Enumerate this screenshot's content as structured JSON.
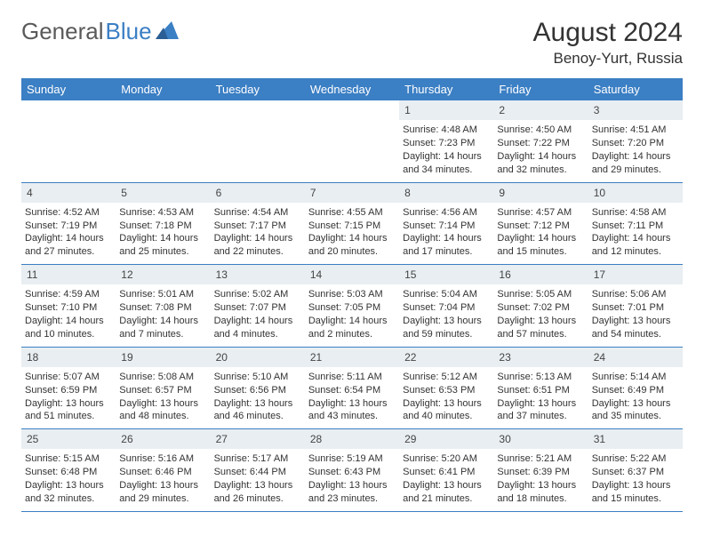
{
  "logo": {
    "text1": "General",
    "text2": "Blue"
  },
  "title": "August 2024",
  "location": "Benoy-Yurt, Russia",
  "colors": {
    "header_bg": "#3b7fc4",
    "header_fg": "#ffffff",
    "daynum_bg": "#e9eef2",
    "rule": "#3b7fc4",
    "text": "#333333"
  },
  "day_headers": [
    "Sunday",
    "Monday",
    "Tuesday",
    "Wednesday",
    "Thursday",
    "Friday",
    "Saturday"
  ],
  "weeks": [
    [
      null,
      null,
      null,
      null,
      {
        "n": "1",
        "sunrise": "4:48 AM",
        "sunset": "7:23 PM",
        "dl": "14 hours and 34 minutes."
      },
      {
        "n": "2",
        "sunrise": "4:50 AM",
        "sunset": "7:22 PM",
        "dl": "14 hours and 32 minutes."
      },
      {
        "n": "3",
        "sunrise": "4:51 AM",
        "sunset": "7:20 PM",
        "dl": "14 hours and 29 minutes."
      }
    ],
    [
      {
        "n": "4",
        "sunrise": "4:52 AM",
        "sunset": "7:19 PM",
        "dl": "14 hours and 27 minutes."
      },
      {
        "n": "5",
        "sunrise": "4:53 AM",
        "sunset": "7:18 PM",
        "dl": "14 hours and 25 minutes."
      },
      {
        "n": "6",
        "sunrise": "4:54 AM",
        "sunset": "7:17 PM",
        "dl": "14 hours and 22 minutes."
      },
      {
        "n": "7",
        "sunrise": "4:55 AM",
        "sunset": "7:15 PM",
        "dl": "14 hours and 20 minutes."
      },
      {
        "n": "8",
        "sunrise": "4:56 AM",
        "sunset": "7:14 PM",
        "dl": "14 hours and 17 minutes."
      },
      {
        "n": "9",
        "sunrise": "4:57 AM",
        "sunset": "7:12 PM",
        "dl": "14 hours and 15 minutes."
      },
      {
        "n": "10",
        "sunrise": "4:58 AM",
        "sunset": "7:11 PM",
        "dl": "14 hours and 12 minutes."
      }
    ],
    [
      {
        "n": "11",
        "sunrise": "4:59 AM",
        "sunset": "7:10 PM",
        "dl": "14 hours and 10 minutes."
      },
      {
        "n": "12",
        "sunrise": "5:01 AM",
        "sunset": "7:08 PM",
        "dl": "14 hours and 7 minutes."
      },
      {
        "n": "13",
        "sunrise": "5:02 AM",
        "sunset": "7:07 PM",
        "dl": "14 hours and 4 minutes."
      },
      {
        "n": "14",
        "sunrise": "5:03 AM",
        "sunset": "7:05 PM",
        "dl": "14 hours and 2 minutes."
      },
      {
        "n": "15",
        "sunrise": "5:04 AM",
        "sunset": "7:04 PM",
        "dl": "13 hours and 59 minutes."
      },
      {
        "n": "16",
        "sunrise": "5:05 AM",
        "sunset": "7:02 PM",
        "dl": "13 hours and 57 minutes."
      },
      {
        "n": "17",
        "sunrise": "5:06 AM",
        "sunset": "7:01 PM",
        "dl": "13 hours and 54 minutes."
      }
    ],
    [
      {
        "n": "18",
        "sunrise": "5:07 AM",
        "sunset": "6:59 PM",
        "dl": "13 hours and 51 minutes."
      },
      {
        "n": "19",
        "sunrise": "5:08 AM",
        "sunset": "6:57 PM",
        "dl": "13 hours and 48 minutes."
      },
      {
        "n": "20",
        "sunrise": "5:10 AM",
        "sunset": "6:56 PM",
        "dl": "13 hours and 46 minutes."
      },
      {
        "n": "21",
        "sunrise": "5:11 AM",
        "sunset": "6:54 PM",
        "dl": "13 hours and 43 minutes."
      },
      {
        "n": "22",
        "sunrise": "5:12 AM",
        "sunset": "6:53 PM",
        "dl": "13 hours and 40 minutes."
      },
      {
        "n": "23",
        "sunrise": "5:13 AM",
        "sunset": "6:51 PM",
        "dl": "13 hours and 37 minutes."
      },
      {
        "n": "24",
        "sunrise": "5:14 AM",
        "sunset": "6:49 PM",
        "dl": "13 hours and 35 minutes."
      }
    ],
    [
      {
        "n": "25",
        "sunrise": "5:15 AM",
        "sunset": "6:48 PM",
        "dl": "13 hours and 32 minutes."
      },
      {
        "n": "26",
        "sunrise": "5:16 AM",
        "sunset": "6:46 PM",
        "dl": "13 hours and 29 minutes."
      },
      {
        "n": "27",
        "sunrise": "5:17 AM",
        "sunset": "6:44 PM",
        "dl": "13 hours and 26 minutes."
      },
      {
        "n": "28",
        "sunrise": "5:19 AM",
        "sunset": "6:43 PM",
        "dl": "13 hours and 23 minutes."
      },
      {
        "n": "29",
        "sunrise": "5:20 AM",
        "sunset": "6:41 PM",
        "dl": "13 hours and 21 minutes."
      },
      {
        "n": "30",
        "sunrise": "5:21 AM",
        "sunset": "6:39 PM",
        "dl": "13 hours and 18 minutes."
      },
      {
        "n": "31",
        "sunrise": "5:22 AM",
        "sunset": "6:37 PM",
        "dl": "13 hours and 15 minutes."
      }
    ]
  ],
  "labels": {
    "sunrise": "Sunrise:",
    "sunset": "Sunset:",
    "daylight": "Daylight:"
  }
}
